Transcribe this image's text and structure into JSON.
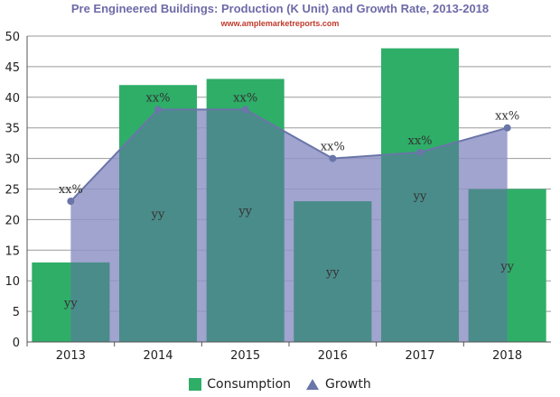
{
  "header": {
    "title": "Pre Engineered Buildings: Production (K Unit) and Growth Rate, 2013-2018",
    "source": "www.amplemarketreports.com"
  },
  "colors": {
    "consumption": "#2fae68",
    "growth_fill": "#8f94c5",
    "growth_line": "#6a75a8",
    "overlap": "#4a8c8a"
  },
  "chart_data": {
    "type": "bar",
    "title": "Pre Engineered Buildings: Production (K Unit) and Growth Rate, 2013-2018",
    "categories": [
      "2013",
      "2014",
      "2015",
      "2016",
      "2017",
      "2018"
    ],
    "ylim": [
      0,
      50
    ],
    "yticks": [
      0,
      5,
      10,
      15,
      20,
      25,
      30,
      35,
      40,
      45,
      50
    ],
    "grid": true,
    "legend_position": "bottom",
    "series": [
      {
        "name": "Consumption",
        "type": "bar",
        "values": [
          13,
          42,
          43,
          23,
          48,
          25
        ],
        "labels": [
          "yy",
          "yy",
          "yy",
          "yy",
          "yy",
          "yy"
        ]
      },
      {
        "name": "Growth",
        "type": "area",
        "values": [
          23,
          38,
          38,
          30,
          31,
          35
        ],
        "labels": [
          "xx%",
          "xx%",
          "xx%",
          "xx%",
          "xx%",
          "xx%"
        ]
      }
    ]
  }
}
